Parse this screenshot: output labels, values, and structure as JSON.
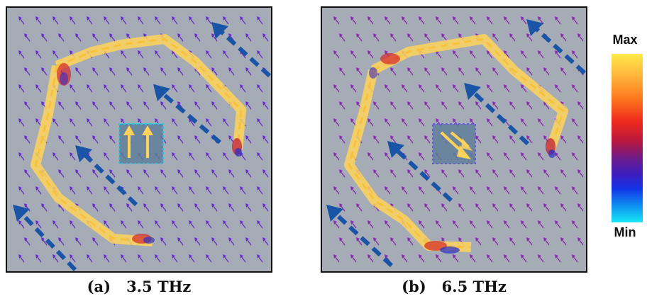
{
  "panels": [
    {
      "label": "(a)",
      "frequency": "3.5 THz"
    },
    {
      "label": "(b)",
      "frequency": "6.5 THz"
    }
  ],
  "colorbar": {
    "max_label": "Max",
    "min_label": "Min",
    "colors": [
      "#ffe94a",
      "#ffb13a",
      "#ff7a1f",
      "#ee2a1c",
      "#b8183f",
      "#6c1b8b",
      "#3a1ec2",
      "#1334e6",
      "#0e8ef0",
      "#16e8f6"
    ]
  },
  "colors": {
    "background": "#a6acb5",
    "field_arrow_a": "#6a2bd0",
    "field_arrow_b": "#8b2bb5",
    "edge_current": "#ffd35a",
    "wave_direction": "#1a54a6"
  }
}
